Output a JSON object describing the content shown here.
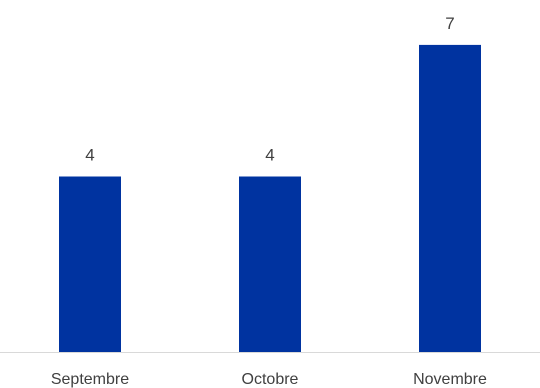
{
  "chart_data": {
    "type": "bar",
    "categories": [
      "Septembre",
      "Octobre",
      "Novembre"
    ],
    "values": [
      4,
      4,
      7
    ],
    "title": "",
    "xlabel": "",
    "ylabel": "",
    "ylim": [
      0,
      8
    ],
    "grid": false,
    "legend": "none",
    "data_labels": true,
    "colors": {
      "bar": "#0033a0",
      "axis": "#d9d9d9",
      "text": "#404040"
    }
  }
}
